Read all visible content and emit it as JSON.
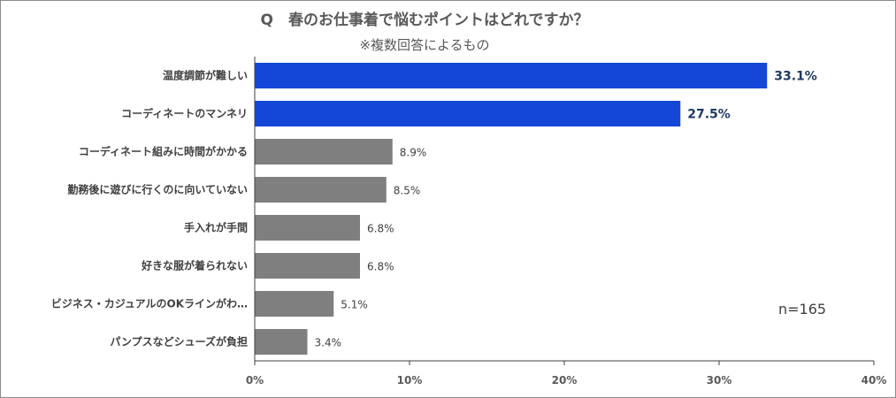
{
  "chart_data": {
    "type": "bar",
    "orientation": "horizontal",
    "title": "Q　春のお仕事着で悩むポイントはどれですか？",
    "subtitle": "※複数回答によるもの",
    "note": "n=165",
    "categories": [
      "温度調節が難しい",
      "コーディネートのマンネリ",
      "コーディネート組みに時間がかかる",
      "勤務後に遊びに行くのに向いていない",
      "手入れが手間",
      "好きな服が着られない",
      "ビジネス・カジュアルのOKラインがわ…",
      "パンプスなどシューズが負担"
    ],
    "values": [
      33.1,
      27.5,
      8.9,
      8.5,
      6.8,
      6.8,
      5.1,
      3.4
    ],
    "value_labels": [
      "33.1%",
      "27.5%",
      "8.9%",
      "8.5%",
      "6.8%",
      "6.8%",
      "5.1%",
      "3.4%"
    ],
    "highlighted": [
      true,
      true,
      false,
      false,
      false,
      false,
      false,
      false
    ],
    "xlim": [
      0,
      40
    ],
    "xticks": [
      0,
      10,
      20,
      30,
      40
    ],
    "xtick_labels": [
      "0%",
      "10%",
      "20%",
      "30%",
      "40%"
    ],
    "grid": false,
    "colors": {
      "highlight": "#1447d8",
      "default": "#7f7f7f",
      "axis": "#404040"
    }
  }
}
